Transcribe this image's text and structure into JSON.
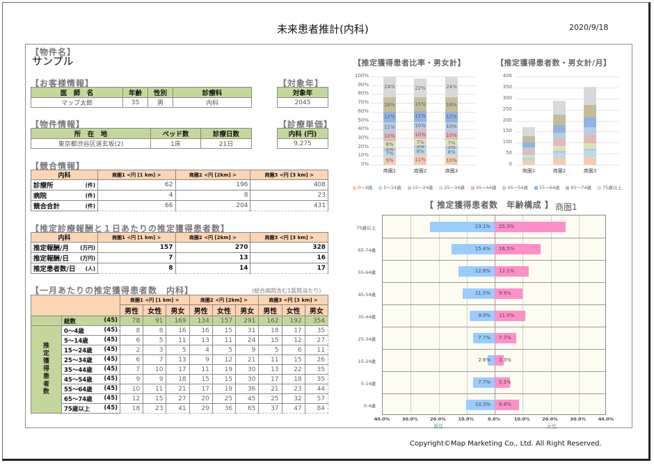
{
  "header": {
    "title": "未来患者推計(内科)",
    "date": "2020/9/18"
  },
  "property": {
    "section": "【物件名】",
    "name": "サンプル"
  },
  "customer": {
    "section": "【お客様情報】",
    "headers": [
      "医　師　名",
      "年齢",
      "性別",
      "診療科"
    ],
    "values": [
      "マップ太郎",
      "35",
      "男",
      "内科"
    ]
  },
  "target_year": {
    "section": "【対象年】",
    "header": "対象年",
    "value": "2045"
  },
  "property_info": {
    "section": "【物件情報】",
    "headers": [
      "所　在　地",
      "ベッド数",
      "診療日数"
    ],
    "values": [
      "東京都渋谷区道玄坂(2)",
      "1床",
      "21日"
    ]
  },
  "unit_price": {
    "section": "【診療単価】",
    "header": "内科 (円)",
    "value": "9,275"
  },
  "competition": {
    "section": "【競合情報】",
    "corner": "内科",
    "columns": [
      "商圏1 <円 [1 km] >",
      "商圏2 <円 [2km] >",
      "商圏3 <円 [3 km] >"
    ],
    "rows": [
      {
        "label": "診療所",
        "unit": "(件)",
        "values": [
          "62",
          "196",
          "408"
        ]
      },
      {
        "label": "病院",
        "unit": "(件)",
        "values": [
          "4",
          "8",
          "23"
        ]
      },
      {
        "label": "競合合計",
        "unit": "(件)",
        "values": [
          "66",
          "204",
          "431"
        ]
      }
    ]
  },
  "revenue": {
    "section": "【推定診療報酬と１日あたりの推定獲得患者数】",
    "corner": "内科",
    "columns": [
      "商圏1 <円 [1 km] >",
      "商圏2 <円 [2km] >",
      "商圏3 <円 [3 km] >"
    ],
    "rows": [
      {
        "label": "推定報酬/月",
        "unit": "(万円)",
        "values": [
          "157",
          "270",
          "328"
        ]
      },
      {
        "label": "推定報酬/日",
        "unit": "(万円)",
        "values": [
          "7",
          "13",
          "16"
        ]
      },
      {
        "label": "推定患者数/日",
        "unit": "(人)",
        "values": [
          "8",
          "14",
          "17"
        ]
      }
    ]
  },
  "monthly": {
    "section": "【一月あたりの推定獲得患者数　内科】",
    "note": "(総合病院含む1医院当たり)",
    "areas": [
      "商圏1 <円 [1 km] >",
      "商圏2 <円 [2km] >",
      "商圏3 <円 [3 km] >"
    ],
    "subheaders": [
      "男性",
      "女性",
      "男女"
    ],
    "category": "推定獲得患者数",
    "rows": [
      {
        "label": "総数",
        "code": "(45)",
        "values": [
          "78",
          "91",
          "169",
          "134",
          "157",
          "291",
          "162",
          "192",
          "354"
        ]
      },
      {
        "label": "0～4歳",
        "code": "(45)",
        "values": [
          "8",
          "8",
          "16",
          "16",
          "15",
          "31",
          "18",
          "17",
          "35"
        ]
      },
      {
        "label": "5～14歳",
        "code": "(45)",
        "values": [
          "6",
          "5",
          "11",
          "13",
          "11",
          "24",
          "15",
          "12",
          "27"
        ]
      },
      {
        "label": "15～24歳",
        "code": "(45)",
        "values": [
          "2",
          "3",
          "5",
          "4",
          "5",
          "9",
          "5",
          "6",
          "11"
        ]
      },
      {
        "label": "25～34歳",
        "code": "(45)",
        "values": [
          "6",
          "7",
          "13",
          "9",
          "12",
          "21",
          "11",
          "15",
          "26"
        ]
      },
      {
        "label": "35～44歳",
        "code": "(45)",
        "values": [
          "7",
          "10",
          "17",
          "11",
          "19",
          "30",
          "13",
          "22",
          "35"
        ]
      },
      {
        "label": "45～54歳",
        "code": "(45)",
        "values": [
          "9",
          "9",
          "18",
          "15",
          "15",
          "30",
          "17",
          "18",
          "35"
        ]
      },
      {
        "label": "55～64歳",
        "code": "(45)",
        "values": [
          "10",
          "11",
          "21",
          "17",
          "19",
          "36",
          "21",
          "23",
          "44"
        ]
      },
      {
        "label": "65～74歳",
        "code": "(45)",
        "values": [
          "12",
          "15",
          "27",
          "20",
          "25",
          "45",
          "25",
          "32",
          "57"
        ]
      },
      {
        "label": "75歳以上",
        "code": "(45)",
        "values": [
          "18",
          "23",
          "41",
          "29",
          "36",
          "65",
          "37",
          "47",
          "84"
        ]
      }
    ]
  },
  "chart_data": [
    {
      "type": "bar",
      "stacked": true,
      "title": "【推定獲得患者比率・男女計】",
      "categories": [
        "商圏1",
        "商圏2",
        "商圏3"
      ],
      "ylim": [
        0,
        100
      ],
      "yticks": [
        "0%",
        "10%",
        "20%",
        "30%",
        "40%",
        "50%",
        "60%",
        "70%",
        "80%",
        "90%",
        "100%"
      ],
      "series": [
        {
          "name": "0～4歳",
          "color": "#f8cbad",
          "values": [
            9,
            11,
            10
          ],
          "labels": [
            "9%",
            "11%",
            "10%"
          ]
        },
        {
          "name": "5～14歳",
          "color": "#b4dcea",
          "values": [
            7,
            8,
            8
          ],
          "labels": [
            "7%",
            "8%",
            "8%"
          ]
        },
        {
          "name": "15～24歳",
          "color": "#c9c0dc",
          "values": [
            3,
            3,
            3
          ],
          "labels": [
            "3%",
            "3%",
            "3%"
          ]
        },
        {
          "name": "25～34歳",
          "color": "#d8e4bc",
          "values": [
            8,
            7,
            7
          ],
          "labels": [
            "8%",
            "7%",
            "7%"
          ]
        },
        {
          "name": "35～44歳",
          "color": "#e6b9b8",
          "values": [
            10,
            10,
            10
          ],
          "labels": [
            "10%",
            "10%",
            "10%"
          ]
        },
        {
          "name": "45～54歳",
          "color": "#b8cce4",
          "values": [
            11,
            10,
            10
          ],
          "labels": [
            "11%",
            "10%",
            "10%"
          ]
        },
        {
          "name": "55～64歳",
          "color": "#8db4e2",
          "values": [
            12,
            12,
            12
          ],
          "labels": [
            "12%",
            "12%",
            "12%"
          ]
        },
        {
          "name": "65～74歳",
          "color": "#c4bd97",
          "values": [
            16,
            15,
            16
          ],
          "labels": [
            "16%",
            "15%",
            "16%"
          ]
        },
        {
          "name": "75歳以上",
          "color": "#d9d9d9",
          "values": [
            24,
            22,
            24
          ],
          "labels": [
            "24%",
            "22%",
            "24%"
          ]
        }
      ]
    },
    {
      "type": "bar",
      "stacked": true,
      "title": "【推定獲得患者数・男女計/月】",
      "categories": [
        "商圏1",
        "商圏2",
        "商圏3"
      ],
      "ylim": [
        0,
        400
      ],
      "yticks": [
        "0",
        "50",
        "100",
        "150",
        "200",
        "250",
        "300",
        "350",
        "400"
      ],
      "series": [
        {
          "name": "0～4歳",
          "color": "#f8cbad",
          "values": [
            16,
            31,
            35
          ]
        },
        {
          "name": "5～14歳",
          "color": "#b4dcea",
          "values": [
            11,
            24,
            27
          ]
        },
        {
          "name": "15～24歳",
          "color": "#c9c0dc",
          "values": [
            5,
            9,
            11
          ]
        },
        {
          "name": "25～34歳",
          "color": "#d8e4bc",
          "values": [
            13,
            21,
            26
          ]
        },
        {
          "name": "35～44歳",
          "color": "#e6b9b8",
          "values": [
            17,
            30,
            35
          ]
        },
        {
          "name": "45～54歳",
          "color": "#b8cce4",
          "values": [
            18,
            30,
            35
          ]
        },
        {
          "name": "55～64歳",
          "color": "#8db4e2",
          "values": [
            21,
            36,
            44
          ]
        },
        {
          "name": "65～74歳",
          "color": "#c4bd97",
          "values": [
            27,
            45,
            57
          ]
        },
        {
          "name": "75歳以上",
          "color": "#d9d9d9",
          "values": [
            41,
            65,
            84
          ]
        }
      ]
    },
    {
      "type": "bar",
      "orientation": "horizontal",
      "title": "【 推定獲得患者数　年齢構成 】",
      "subtitle": "商圏1",
      "categories": [
        "75歳以上",
        "65-74歳",
        "55-64歳",
        "45-54歳",
        "35-44歳",
        "25-34歳",
        "15-24歳",
        "5-14歳",
        "0-4歳"
      ],
      "xticks": [
        "40.0%",
        "30.0%",
        "20.0%",
        "10.0%",
        "0.0%",
        "10.0%",
        "20.0%",
        "30.0%",
        "40.0%"
      ],
      "xlim": [
        -40,
        40
      ],
      "xlabels": {
        "male": "男性",
        "female": "女性"
      },
      "series": [
        {
          "name": "男性",
          "color": "#99ccff",
          "values": [
            23.1,
            15.4,
            12.8,
            11.5,
            9.0,
            7.7,
            2.6,
            7.7,
            10.3
          ],
          "labels": [
            "23.1%",
            "15.4%",
            "12.8%",
            "11.5%",
            "9.0%",
            "7.7%",
            "2.6%",
            "7.7%",
            "10.3%"
          ]
        },
        {
          "name": "女性",
          "color": "#ff8fc8",
          "values": [
            25.3,
            16.5,
            12.1,
            9.9,
            11.0,
            7.7,
            3.3,
            5.5,
            8.8
          ],
          "labels": [
            "25.3%",
            "16.5%",
            "12.1%",
            "9.9%",
            "11.0%",
            "7.7%",
            "3.3%",
            "5.5%",
            "8.8%"
          ]
        }
      ]
    }
  ],
  "legend": [
    "0～4歳",
    "5～14歳",
    "15～24歳",
    "25～34歳",
    "35～44歳",
    "45～54歳",
    "55～64歳",
    "65～74歳",
    "75歳以上"
  ],
  "footer": {
    "copyright": "Copyright©Map Marketing Co., Ltd. All Right Reserved."
  }
}
